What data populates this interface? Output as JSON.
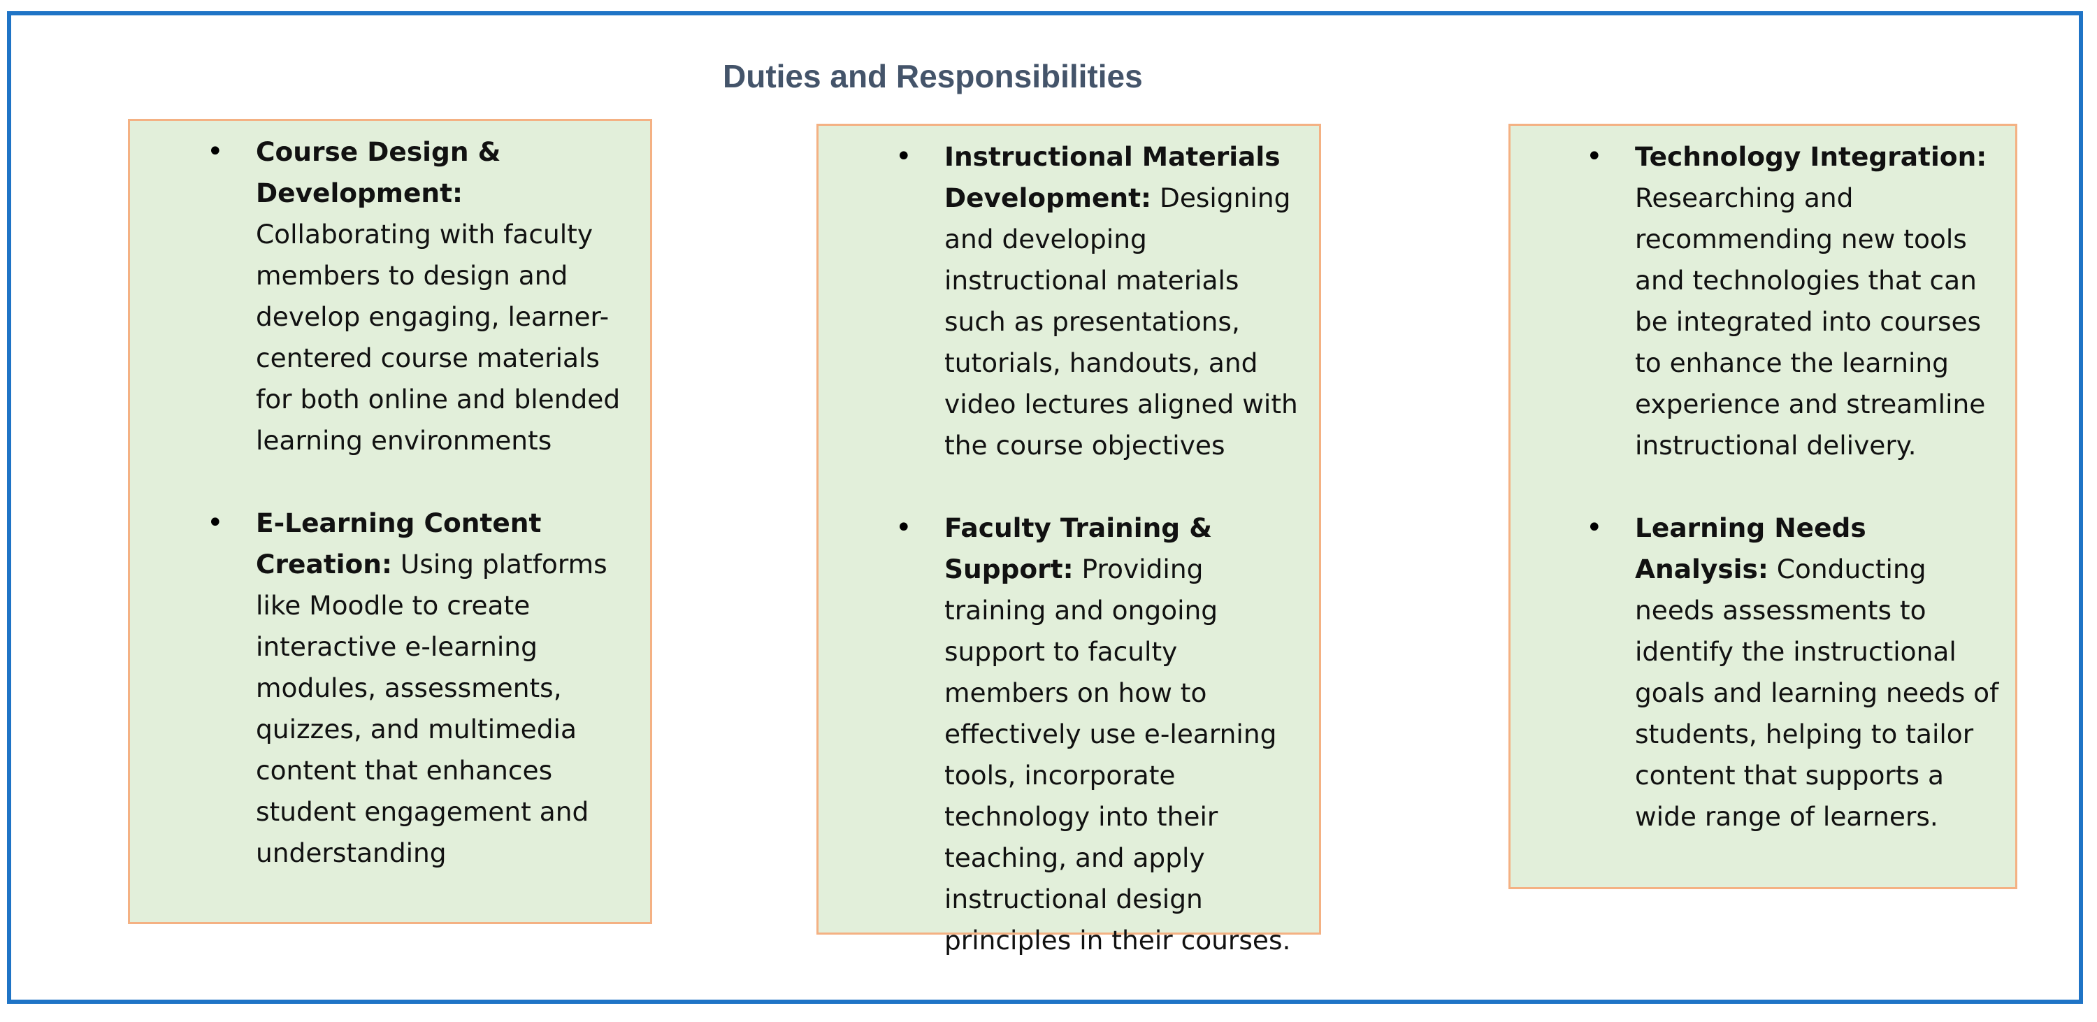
{
  "title": "Duties and Responsibilities",
  "bullet_symbol": "•",
  "columns": [
    {
      "items": [
        {
          "term": "Course Design & Development",
          "separator": ":",
          "description": " Collaborating with faculty members to design and develop engaging, learner-centered course materials for both online and blended learning environments"
        },
        {
          "term": "E-Learning Content Creation",
          "separator": ":",
          "description": " Using platforms like Moodle to create interactive e-learning modules, assessments, quizzes, and multimedia content that enhances student engagement and understanding"
        }
      ]
    },
    {
      "items": [
        {
          "term": "Instructional Materials Development",
          "separator": ":",
          "description": " Designing and developing instructional materials such as presentations, tutorials, handouts, and video lectures aligned with the course objectives"
        },
        {
          "term": "Faculty Training & Support",
          "separator": ":",
          "description": " Providing training and ongoing support to faculty members on how to effectively use e-learning tools, incorporate technology into their teaching, and apply instructional design principles in their courses."
        }
      ]
    },
    {
      "items": [
        {
          "term": "Technology Integration",
          "separator": ":",
          "description": " Researching and recommending new tools and technologies that can be integrated into courses to enhance the learning experience and streamline instructional delivery."
        },
        {
          "term": "Learning Needs Analysis",
          "separator": ":",
          "description": " Conducting needs assessments to identify the instructional goals and learning needs of students, helping to tailor content that supports a wide range of learners."
        }
      ]
    }
  ],
  "colors": {
    "frame_border": "#1f74c6",
    "title_text": "#44546a",
    "box_fill": "#e2efda",
    "box_border": "#f4b183"
  }
}
